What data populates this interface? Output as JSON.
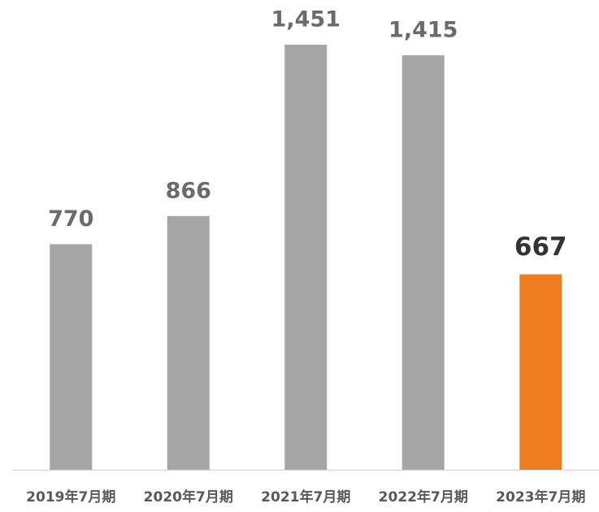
{
  "chart_data": {
    "type": "bar",
    "categories": [
      "2019年7月期",
      "2020年7月期",
      "2021年7月期",
      "2022年7月期",
      "2023年7月期"
    ],
    "values": [
      770,
      866,
      1451,
      1415,
      667
    ],
    "value_labels": [
      "770",
      "866",
      "1,451",
      "1,415",
      "667"
    ],
    "colors": [
      "#a6a6a6",
      "#a6a6a6",
      "#a6a6a6",
      "#a6a6a6",
      "#ee7d1f"
    ]
  }
}
